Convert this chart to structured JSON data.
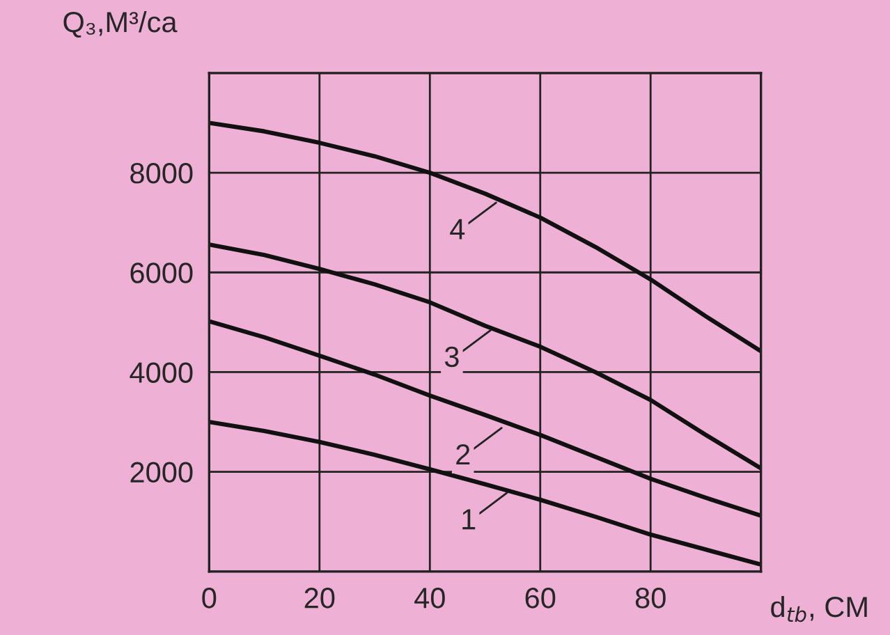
{
  "chart_data": {
    "type": "line",
    "xlabel": "d$_{tb}$, CM",
    "ylabel": "Q₃,M³/ca",
    "x": [
      0,
      10,
      20,
      30,
      40,
      50,
      60,
      70,
      80,
      90,
      100
    ],
    "series": [
      {
        "color": "#111111",
        "values": [
          3000,
          2820,
          2600,
          2340,
          2050,
          1750,
          1440,
          1100,
          740,
          440,
          140
        ]
      },
      {
        "color": "#111111",
        "values": [
          5020,
          4700,
          4330,
          3950,
          3530,
          3140,
          2740,
          2300,
          1860,
          1480,
          1120
        ]
      },
      {
        "color": "#111111",
        "values": [
          6560,
          6350,
          6070,
          5760,
          5400,
          4930,
          4510,
          4000,
          3440,
          2740,
          2070
        ]
      },
      {
        "color": "#111111",
        "values": [
          9000,
          8830,
          8600,
          8330,
          8000,
          7580,
          7100,
          6510,
          5860,
          5120,
          4420
        ]
      }
    ],
    "annotations": [
      {
        "text": "1",
        "x": 54,
        "y": 1580
      },
      {
        "text": "2",
        "x": 53,
        "y": 2880
      },
      {
        "text": "3",
        "x": 51,
        "y": 4840
      },
      {
        "text": "4",
        "x": 52,
        "y": 7400
      }
    ],
    "xlim": [
      0,
      100
    ],
    "ylim": [
      0,
      10000
    ],
    "xticks": [
      0,
      20,
      40,
      60,
      80,
      {
        "value": 100,
        "label": null
      }
    ],
    "yticks": [
      {
        "value": 0,
        "label": null
      },
      2000,
      4000,
      6000,
      8000,
      {
        "value": 10000,
        "label": null
      }
    ],
    "grid": true,
    "marker": "none",
    "line_style": "solid"
  }
}
